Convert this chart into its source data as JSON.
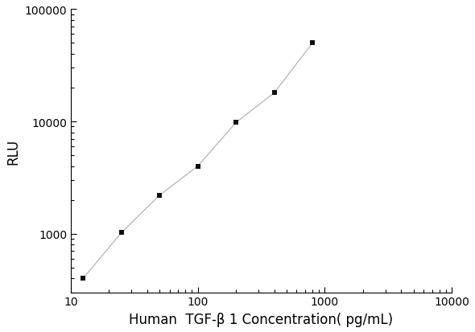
{
  "x_data": [
    12.5,
    25,
    50,
    100,
    200,
    400,
    800
  ],
  "y_data": [
    400,
    1020,
    2200,
    4000,
    9800,
    18000,
    50000
  ],
  "marker": "s",
  "marker_color": "#111111",
  "marker_size": 5,
  "line_color": "#bbbbbb",
  "line_style": "-",
  "line_width": 1.0,
  "xlabel": "Human  TGF-β 1 Concentration( pg/mL)",
  "ylabel": "RLU",
  "xlim": [
    10,
    10000
  ],
  "ylim": [
    300,
    100000
  ],
  "x_ticks": [
    10,
    100,
    1000,
    10000
  ],
  "y_ticks": [
    1000,
    10000,
    100000
  ],
  "background_color": "#ffffff",
  "xlabel_fontsize": 12,
  "ylabel_fontsize": 12,
  "tick_fontsize": 10
}
